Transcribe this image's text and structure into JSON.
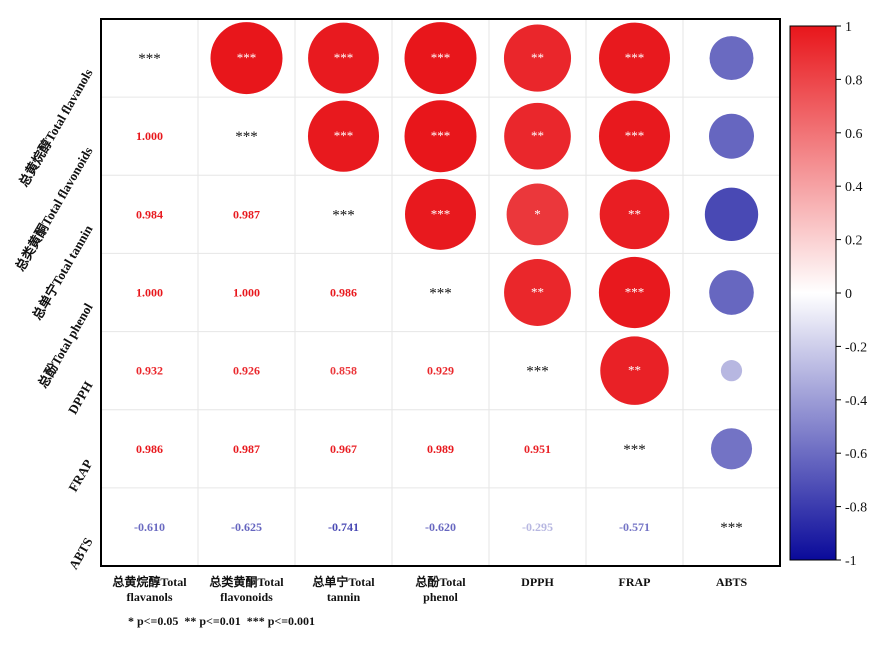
{
  "chart_data": {
    "type": "heatmap",
    "variables": [
      "总黄烷醇Total flavanols",
      "总类黄酮Total flavonoids",
      "总单宁Total tannin",
      "总酚Total phenol",
      "DPPH",
      "FRAP",
      "ABTS"
    ],
    "x_labels": [
      [
        "总黄烷醇Total",
        "flavanols"
      ],
      [
        "总类黄酮Total",
        "flavonoids"
      ],
      [
        "总单宁Total",
        "tannin"
      ],
      [
        "总酚Total",
        "phenol"
      ],
      [
        "DPPH"
      ],
      [
        "FRAP"
      ],
      [
        "ABTS"
      ]
    ],
    "correlations": [
      [
        1.0,
        1.0,
        0.984,
        1.0,
        0.932,
        0.986,
        -0.61
      ],
      [
        1.0,
        1.0,
        0.987,
        1.0,
        0.926,
        0.987,
        -0.625
      ],
      [
        0.984,
        0.987,
        1.0,
        0.986,
        0.858,
        0.967,
        -0.741
      ],
      [
        1.0,
        1.0,
        0.986,
        1.0,
        0.929,
        0.989,
        -0.62
      ],
      [
        0.932,
        0.926,
        0.858,
        0.929,
        1.0,
        0.951,
        -0.295
      ],
      [
        0.986,
        0.987,
        0.967,
        0.989,
        0.951,
        1.0,
        -0.571
      ],
      [
        -0.61,
        -0.625,
        -0.741,
        -0.62,
        -0.295,
        -0.571,
        1.0
      ]
    ],
    "value_labels": [
      [
        "",
        "",
        "",
        "",
        "",
        "",
        ""
      ],
      [
        "1.000",
        "",
        "",
        "",
        "",
        "",
        ""
      ],
      [
        "0.984",
        "0.987",
        "",
        "",
        "",
        "",
        ""
      ],
      [
        "1.000",
        "1.000",
        "0.986",
        "",
        "",
        "",
        ""
      ],
      [
        "0.932",
        "0.926",
        "0.858",
        "0.929",
        "",
        "",
        ""
      ],
      [
        "0.986",
        "0.987",
        "0.967",
        "0.989",
        "0.951",
        "",
        ""
      ],
      [
        "-0.610",
        "-0.625",
        "-0.741",
        "-0.620",
        "-0.295",
        "-0.571",
        ""
      ]
    ],
    "significance": [
      [
        "***",
        "***",
        "***",
        "***",
        "**",
        "***",
        ""
      ],
      [
        "",
        "***",
        "***",
        "***",
        "**",
        "***",
        ""
      ],
      [
        "",
        "",
        "***",
        "***",
        "*",
        "**",
        ""
      ],
      [
        "",
        "",
        "",
        "***",
        "**",
        "***",
        ""
      ],
      [
        "",
        "",
        "",
        "",
        "***",
        "**",
        ""
      ],
      [
        "",
        "",
        "",
        "",
        "",
        "***",
        ""
      ],
      [
        "",
        "",
        "",
        "",
        "",
        "",
        "***"
      ]
    ],
    "colorbar": {
      "range": [
        -1,
        1
      ],
      "ticks": [
        "1",
        "0.8",
        "0.6",
        "0.4",
        "0.2",
        "0",
        "-0.2",
        "-0.4",
        "-0.6",
        "-0.8",
        "-1"
      ],
      "colors": {
        "positive": "#e8161b",
        "neutral": "#ffffff",
        "negative": "#0a0a9a"
      }
    },
    "significance_note": "* p<=0.05  ** p<=0.01  *** p<=0.001"
  }
}
